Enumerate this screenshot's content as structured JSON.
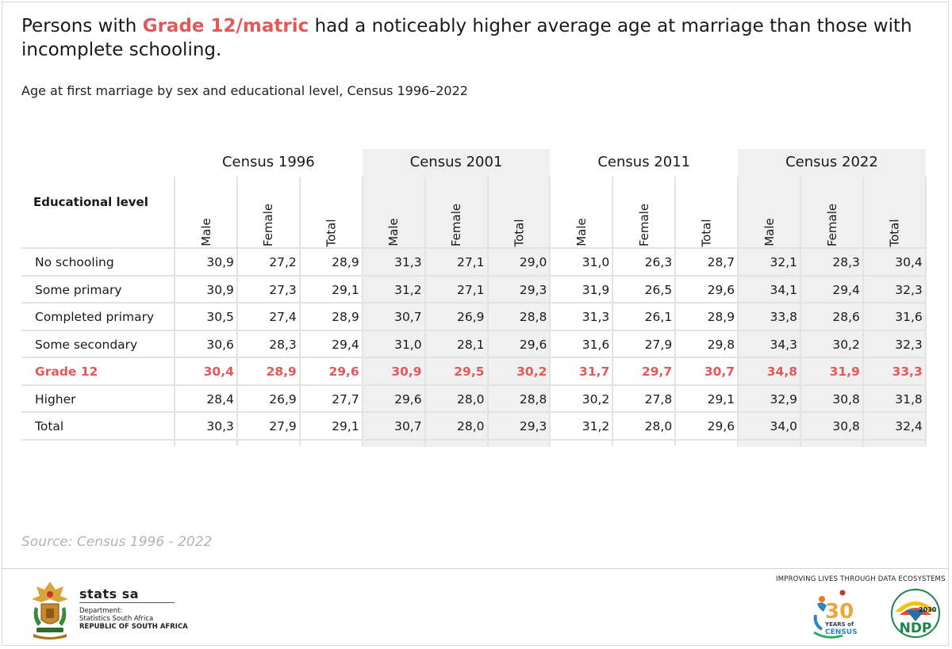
{
  "headline": {
    "before": "Persons with ",
    "highlight": "Grade 12/matric",
    "after": " had a noticeably higher average age at marriage than those with incomplete schooling."
  },
  "subtitle": "Age at first marriage by sex and educational level, Census 1996–2022",
  "source": "Source: Census 1996 - 2022",
  "footer": {
    "brand": "stats sa",
    "dept_line1": "Department:",
    "dept_line2": "Statistics South Africa",
    "dept_line3": "REPUBLIC OF SOUTH AFRICA",
    "tagline": "IMPROVING LIVES THROUGH DATA ECOSYSTEMS",
    "census30_number": "30",
    "census30_line1": "YEARS of",
    "census30_line2": "CENSUS",
    "ndp_year": "2030",
    "ndp_text": "NDP"
  },
  "colors": {
    "highlight": "#e05a5a",
    "band": "#f0f0f0",
    "grid": "#e3e3e3"
  },
  "chart_data": {
    "type": "table",
    "title": "Age at first marriage by sex and educational level, Census 1996–2022",
    "row_header": "Educational level",
    "groups": [
      "Census 1996",
      "Census 2001",
      "Census 2011",
      "Census 2022"
    ],
    "subcolumns": [
      "Male",
      "Female",
      "Total"
    ],
    "highlight_row": "Grade 12",
    "rows": [
      {
        "label": "No schooling",
        "values": [
          "30,9",
          "27,2",
          "28,9",
          "31,3",
          "27,1",
          "29,0",
          "31,0",
          "26,3",
          "28,7",
          "32,1",
          "28,3",
          "30,4"
        ]
      },
      {
        "label": "Some primary",
        "values": [
          "30,9",
          "27,3",
          "29,1",
          "31,2",
          "27,1",
          "29,3",
          "31,9",
          "26,5",
          "29,6",
          "34,1",
          "29,4",
          "32,3"
        ]
      },
      {
        "label": "Completed primary",
        "values": [
          "30,5",
          "27,4",
          "28,9",
          "30,7",
          "26,9",
          "28,8",
          "31,3",
          "26,1",
          "28,9",
          "33,8",
          "28,6",
          "31,6"
        ]
      },
      {
        "label": "Some secondary",
        "values": [
          "30,6",
          "28,3",
          "29,4",
          "31,0",
          "28,1",
          "29,6",
          "31,6",
          "27,9",
          "29,8",
          "34,3",
          "30,2",
          "32,3"
        ]
      },
      {
        "label": "Grade 12",
        "values": [
          "30,4",
          "28,9",
          "29,6",
          "30,9",
          "29,5",
          "30,2",
          "31,7",
          "29,7",
          "30,7",
          "34,8",
          "31,9",
          "33,3"
        ]
      },
      {
        "label": "Higher",
        "values": [
          "28,4",
          "26,9",
          "27,7",
          "29,6",
          "28,0",
          "28,8",
          "30,2",
          "27,8",
          "29,1",
          "32,9",
          "30,8",
          "31,8"
        ]
      },
      {
        "label": "Total",
        "values": [
          "30,3",
          "27,9",
          "29,1",
          "30,7",
          "28,0",
          "29,3",
          "31,2",
          "28,0",
          "29,6",
          "34,0",
          "30,8",
          "32,4"
        ]
      }
    ]
  }
}
